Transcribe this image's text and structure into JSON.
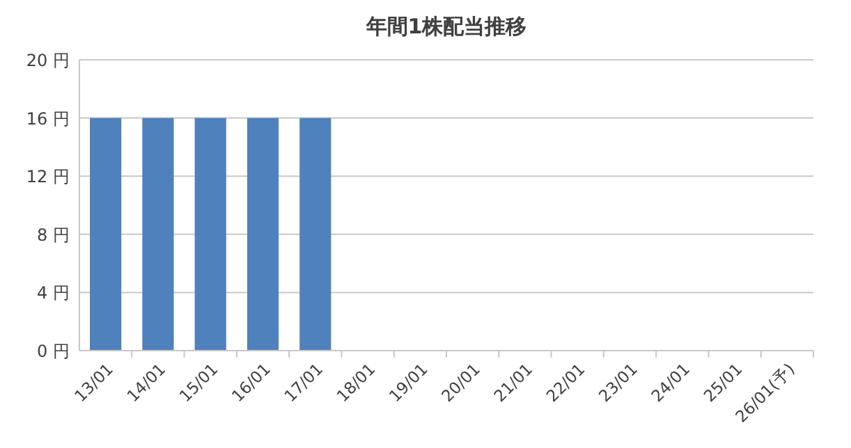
{
  "chart_data": {
    "type": "bar",
    "title": "年間1株配当推移",
    "categories": [
      "13/01",
      "14/01",
      "15/01",
      "16/01",
      "17/01",
      "18/01",
      "19/01",
      "20/01",
      "21/01",
      "22/01",
      "23/01",
      "24/01",
      "25/01",
      "26/01(予)"
    ],
    "values": [
      16,
      16,
      16,
      16,
      16,
      null,
      null,
      null,
      null,
      null,
      null,
      null,
      null,
      null
    ],
    "color": "#4f81bd",
    "ylim": [
      0,
      20
    ],
    "yticks": [
      {
        "value": 0,
        "label": "0 円"
      },
      {
        "value": 4,
        "label": "4 円"
      },
      {
        "value": 8,
        "label": "8 円"
      },
      {
        "value": 12,
        "label": "12 円"
      },
      {
        "value": 16,
        "label": "16 円"
      },
      {
        "value": 20,
        "label": "20 円"
      }
    ],
    "grid": "y"
  }
}
